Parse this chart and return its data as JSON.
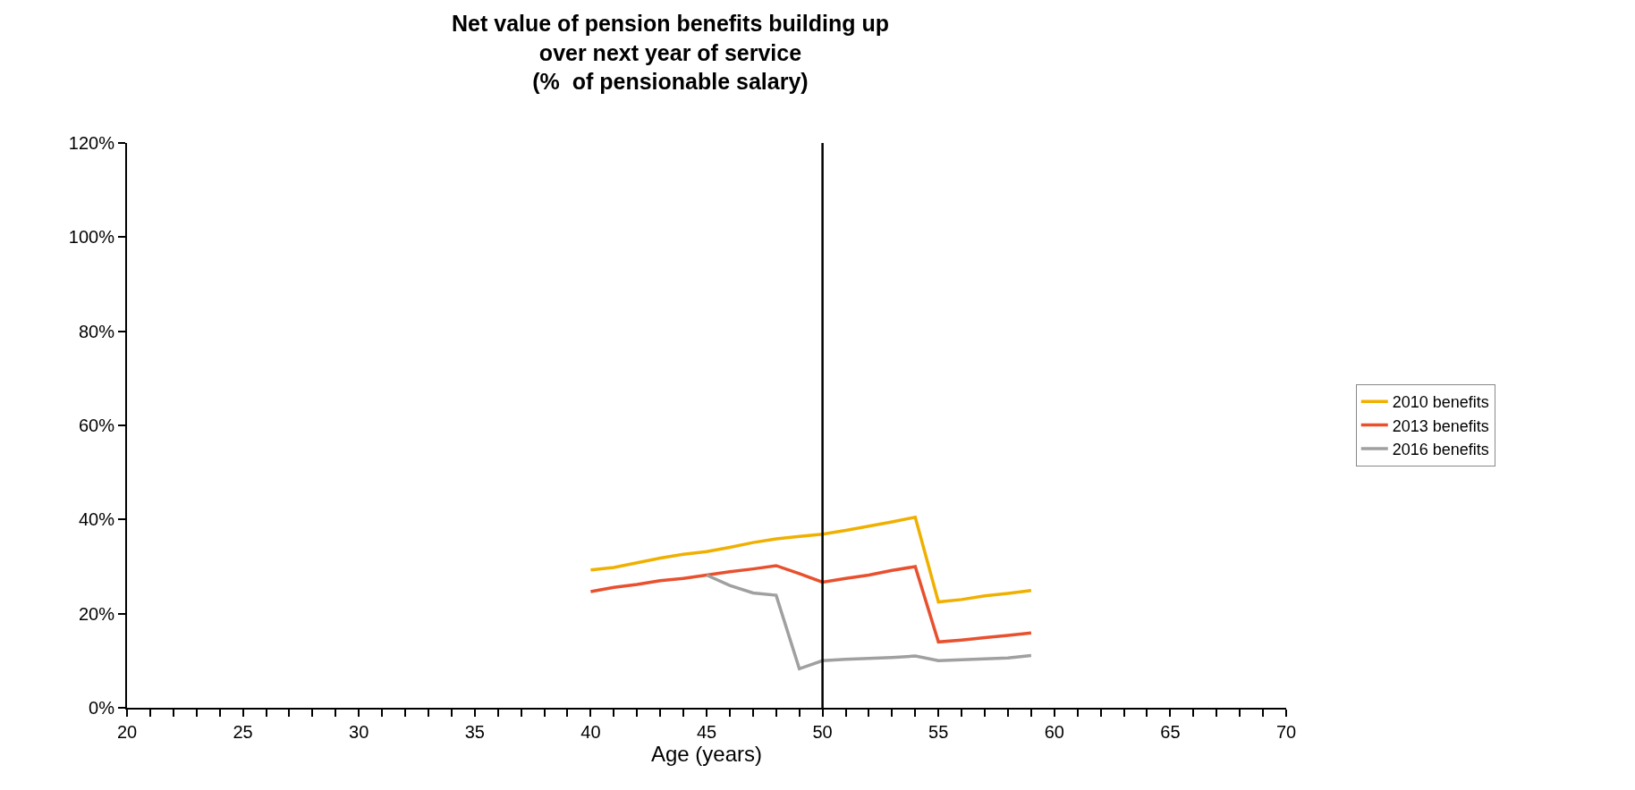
{
  "chart_data": {
    "type": "line",
    "title": "Net value of pension benefits building up\nover next year of service\n(%  of pensionable salary)",
    "xlabel": "Age (years)",
    "x": [
      40,
      41,
      42,
      43,
      44,
      45,
      46,
      47,
      48,
      49,
      50,
      51,
      52,
      53,
      54,
      55,
      56,
      57,
      58,
      59
    ],
    "series": [
      {
        "name": "2010 benefits",
        "color": "#f0b000",
        "values": [
          29.3,
          29.8,
          30.8,
          31.8,
          32.6,
          33.2,
          34.1,
          35.1,
          35.9,
          36.4,
          36.9,
          37.7,
          38.6,
          39.5,
          40.5,
          22.5,
          23.0,
          23.8,
          24.3,
          24.9
        ]
      },
      {
        "name": "2013 benefits",
        "color": "#e8502e",
        "values": [
          24.7,
          25.6,
          26.2,
          27.0,
          27.5,
          28.2,
          28.9,
          29.5,
          30.2,
          28.5,
          26.7,
          27.5,
          28.2,
          29.2,
          30.0,
          14.0,
          14.4,
          14.9,
          15.4,
          15.9
        ]
      },
      {
        "name": "2016 benefits",
        "color": "#a0a0a0",
        "values": [
          null,
          null,
          null,
          null,
          null,
          28.2,
          26.0,
          24.4,
          23.9,
          8.3,
          10.0,
          10.3,
          10.5,
          10.7,
          11.0,
          10.0,
          10.2,
          10.4,
          10.6,
          11.1
        ]
      }
    ],
    "xlim": [
      20,
      70
    ],
    "xticks": [
      20,
      25,
      30,
      35,
      40,
      45,
      50,
      55,
      60,
      65,
      70
    ],
    "ylim": [
      0,
      120
    ],
    "yticks": [
      {
        "value": 0,
        "label": "0%"
      },
      {
        "value": 20,
        "label": "20%"
      },
      {
        "value": 40,
        "label": "40%"
      },
      {
        "value": 60,
        "label": "60%"
      },
      {
        "value": 80,
        "label": "80%"
      },
      {
        "value": 100,
        "label": "100%"
      },
      {
        "value": 120,
        "label": "120%"
      }
    ],
    "ref_lines": [
      {
        "axis": "x",
        "value": 50,
        "color": "#000000"
      }
    ],
    "legend": "right",
    "marker": "none",
    "line_style": "solid"
  }
}
